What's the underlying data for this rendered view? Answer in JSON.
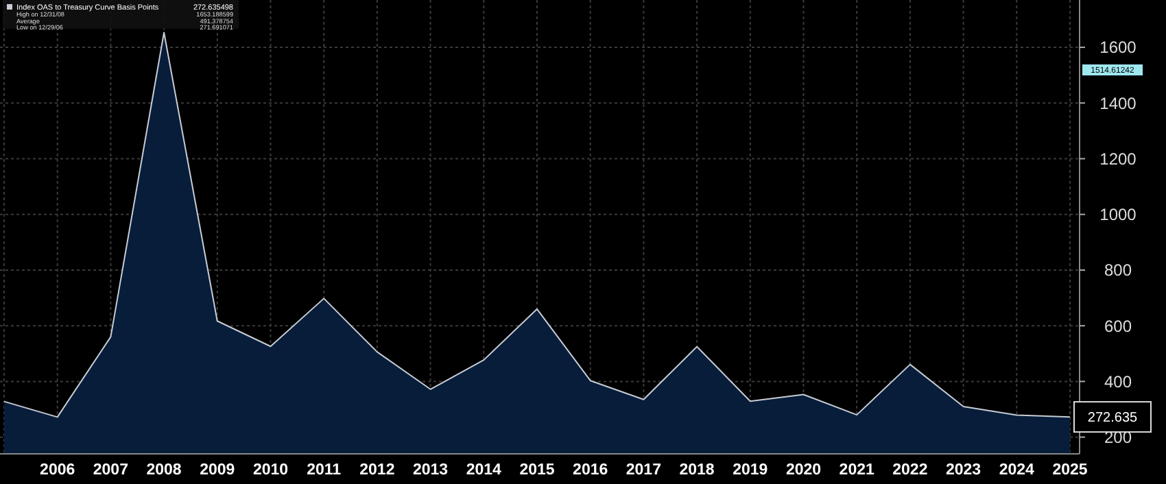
{
  "chart_data": {
    "type": "area",
    "categories": [
      null,
      "2006",
      "2007",
      "2008",
      "2009",
      "2010",
      "2011",
      "2012",
      "2013",
      "2014",
      "2015",
      "2016",
      "2017",
      "2018",
      "2019",
      "2020",
      "2021",
      "2022",
      "2023",
      "2024",
      "2025"
    ],
    "series": [
      {
        "name": "Index OAS to Treasury Curve Basis Points",
        "color": "#c8ccd4",
        "values": [
          328,
          272,
          560,
          1653,
          617,
          526,
          698,
          506,
          372,
          477,
          660,
          403,
          335,
          525,
          329,
          353,
          280,
          461,
          310,
          279,
          272.635
        ],
        "value_labels": [
          null,
          null,
          null,
          null,
          null,
          null,
          null,
          null,
          null,
          null,
          null,
          null,
          null,
          null,
          null,
          null,
          null,
          null,
          null,
          null,
          "272.635"
        ]
      }
    ],
    "ylim": [
      140,
      1770
    ],
    "yticks": [
      200,
      400,
      600,
      800,
      1000,
      1200,
      1400,
      1600
    ],
    "grid": true,
    "legend": "top left",
    "annotations": [
      "1514.61242",
      "272.635498",
      "High on 12/31/08",
      "1653.188599",
      "Average",
      "491.378754",
      "Low on 12/29/06",
      "271.691071"
    ]
  }
}
